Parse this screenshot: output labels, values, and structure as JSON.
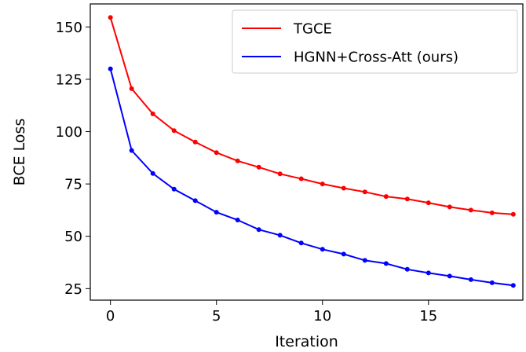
{
  "chart_data": {
    "type": "line",
    "xlabel": "Iteration",
    "ylabel": "BCE Loss",
    "xlim": [
      -0.95,
      19.45
    ],
    "ylim": [
      19.5,
      161
    ],
    "xticks": [
      0,
      5,
      10,
      15
    ],
    "yticks": [
      25,
      50,
      75,
      100,
      125,
      150
    ],
    "grid": false,
    "legend_position": "top-right",
    "x": [
      0,
      1,
      2,
      3,
      4,
      5,
      6,
      7,
      8,
      9,
      10,
      11,
      12,
      13,
      14,
      15,
      16,
      17,
      18,
      19
    ],
    "series": [
      {
        "name": "TGCE",
        "color": "#ff0000",
        "values": [
          154.5,
          120.5,
          108.5,
          100.5,
          95.0,
          90.0,
          86.0,
          83.0,
          79.8,
          77.5,
          75.0,
          73.0,
          71.2,
          69.0,
          67.8,
          66.0,
          64.0,
          62.5,
          61.2,
          60.5
        ]
      },
      {
        "name": "HGNN+Cross-Att (ours)",
        "color": "#0000ff",
        "values": [
          130.0,
          91.0,
          80.0,
          72.5,
          67.0,
          61.5,
          57.8,
          53.2,
          50.5,
          46.8,
          43.8,
          41.5,
          38.5,
          37.0,
          34.2,
          32.5,
          31.0,
          29.3,
          27.8,
          26.5
        ]
      }
    ]
  }
}
